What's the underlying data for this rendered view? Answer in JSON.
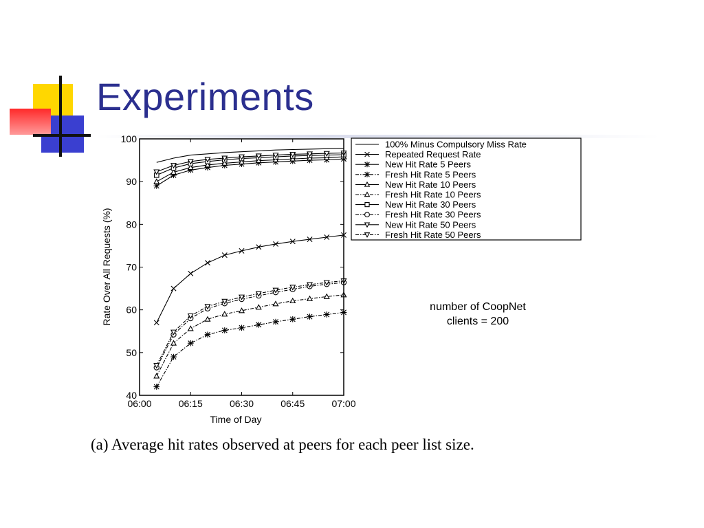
{
  "slide": {
    "title": "Experiments",
    "note_line1": "number of CoopNet",
    "note_line2": "clients = 200",
    "caption": "(a) Average hit rates observed at peers for each peer list size.",
    "accent_colors": {
      "yellow": "#ffd700",
      "blue": "#3a3fd0",
      "red": "#ff2a2a",
      "title": "#2b2f8f"
    }
  },
  "chart_data": {
    "type": "line",
    "xlabel": "Time of Day",
    "ylabel": "Rate Over All Requests (%)",
    "x_ticks": [
      "06:00",
      "06:15",
      "06:30",
      "06:45",
      "07:00"
    ],
    "x_tick_minutes": [
      0,
      15,
      30,
      45,
      60
    ],
    "xlim": [
      0,
      60
    ],
    "y_ticks": [
      "40",
      "50",
      "60",
      "70",
      "80",
      "90",
      "100"
    ],
    "ylim": [
      40,
      100
    ],
    "grid": false,
    "legend_position": "top-right",
    "x": [
      5,
      10,
      15,
      20,
      25,
      30,
      35,
      40,
      45,
      50,
      55,
      60
    ],
    "series": [
      {
        "name": "100% Minus Compulsory Miss Rate",
        "marker": "none",
        "dash": "solid",
        "values": [
          94.5,
          95.5,
          96.2,
          96.5,
          96.8,
          97.0,
          97.2,
          97.4,
          97.5,
          97.6,
          97.7,
          97.8
        ]
      },
      {
        "name": "Repeated Request Rate",
        "marker": "x",
        "dash": "solid",
        "values": [
          57.0,
          65.0,
          68.5,
          71.0,
          72.8,
          73.8,
          74.7,
          75.4,
          76.0,
          76.5,
          77.0,
          77.5
        ]
      },
      {
        "name": "New Hit Rate 5 Peers",
        "marker": "star",
        "dash": "solid",
        "values": [
          89.0,
          91.5,
          92.7,
          93.3,
          93.8,
          94.1,
          94.4,
          94.6,
          94.8,
          95.0,
          95.1,
          95.3
        ]
      },
      {
        "name": "Fresh Hit Rate 5 Peers",
        "marker": "star",
        "dash": "dashdot",
        "values": [
          42.0,
          49.0,
          52.2,
          54.2,
          55.2,
          55.8,
          56.5,
          57.2,
          57.8,
          58.4,
          58.9,
          59.4
        ]
      },
      {
        "name": "New Hit Rate 10 Peers",
        "marker": "triangle-up",
        "dash": "solid",
        "values": [
          90.0,
          92.2,
          93.3,
          93.9,
          94.3,
          94.6,
          94.9,
          95.1,
          95.3,
          95.5,
          95.6,
          95.8
        ]
      },
      {
        "name": "Fresh Hit Rate 10 Peers",
        "marker": "triangle-up",
        "dash": "dashdot",
        "values": [
          44.5,
          52.2,
          55.6,
          57.8,
          59.0,
          59.8,
          60.6,
          61.4,
          62.1,
          62.6,
          63.1,
          63.5
        ]
      },
      {
        "name": "New Hit Rate 30 Peers",
        "marker": "square",
        "dash": "solid",
        "values": [
          91.5,
          93.2,
          94.2,
          94.7,
          95.1,
          95.4,
          95.6,
          95.8,
          96.0,
          96.1,
          96.2,
          96.3
        ]
      },
      {
        "name": "Fresh Hit Rate 30 Peers",
        "marker": "circle",
        "dash": "dashdot",
        "values": [
          46.5,
          54.2,
          58.0,
          60.3,
          61.5,
          62.5,
          63.3,
          64.1,
          64.8,
          65.5,
          66.0,
          66.4
        ]
      },
      {
        "name": "New Hit Rate 50 Peers",
        "marker": "triangle-down",
        "dash": "solid",
        "values": [
          92.3,
          93.8,
          94.7,
          95.2,
          95.5,
          95.8,
          96.0,
          96.2,
          96.4,
          96.5,
          96.6,
          96.7
        ]
      },
      {
        "name": "Fresh Hit Rate 50 Peers",
        "marker": "triangle-down",
        "dash": "dashdot",
        "values": [
          47.0,
          54.8,
          58.6,
          60.8,
          62.0,
          63.0,
          63.8,
          64.6,
          65.3,
          65.9,
          66.4,
          66.8
        ]
      }
    ]
  }
}
